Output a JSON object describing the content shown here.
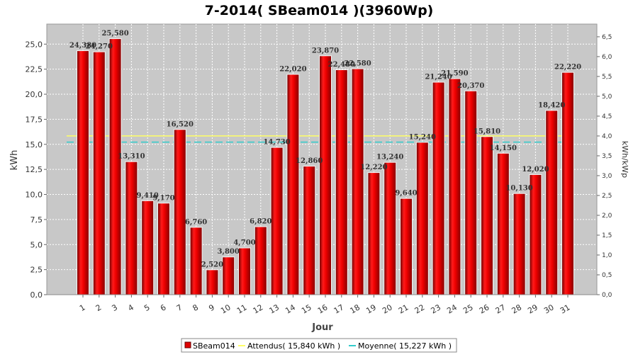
{
  "chart_data": {
    "type": "bar",
    "title": "7-2014( SBeam014 )(3960Wp)",
    "xlabel": "Jour",
    "ylabel": "kWh",
    "y2label": "kWh/kWp",
    "ylim": [
      0,
      27.0
    ],
    "y2lim": [
      0,
      6.82
    ],
    "yticks": [
      "0,0",
      "2,5",
      "5,0",
      "7,5",
      "10,0",
      "12,5",
      "15,0",
      "17,5",
      "20,0",
      "22,5",
      "25,0"
    ],
    "y2ticks": [
      "0,0",
      "0,5",
      "1,0",
      "1,5",
      "2,0",
      "2,5",
      "3,0",
      "3,5",
      "4,0",
      "4,5",
      "5,0",
      "5,5",
      "6,0",
      "6,5"
    ],
    "categories": [
      "1",
      "2",
      "3",
      "4",
      "5",
      "6",
      "7",
      "8",
      "9",
      "10",
      "11",
      "12",
      "13",
      "14",
      "15",
      "16",
      "17",
      "18",
      "19",
      "20",
      "21",
      "22",
      "23",
      "24",
      "25",
      "26",
      "27",
      "28",
      "29",
      "30",
      "31"
    ],
    "series": [
      {
        "name": "SBeam014",
        "color": "#e00000",
        "values": [
          24.38,
          24.27,
          25.58,
          13.31,
          9.41,
          9.17,
          16.52,
          6.76,
          2.52,
          3.8,
          4.7,
          6.82,
          14.73,
          22.02,
          12.86,
          23.87,
          22.48,
          22.58,
          12.22,
          13.24,
          9.64,
          15.24,
          21.24,
          21.59,
          20.37,
          15.81,
          14.15,
          10.13,
          12.02,
          18.42,
          22.22
        ],
        "labels": [
          "24,380",
          "24,270",
          "25,580",
          "13,310",
          "9,410",
          "9,170",
          "16,520",
          "6,760",
          "2,520",
          "3,800",
          "4,700",
          "6,820",
          "14,730",
          "22,020",
          "12,860",
          "23,870",
          "22,480",
          "22,580",
          "12,220",
          "13,240",
          "9,640",
          "15,240",
          "21,240",
          "21,590",
          "20,370",
          "15,810",
          "14,150",
          "10,130",
          "12,020",
          "18,420",
          "22,220"
        ]
      }
    ],
    "reference_lines": [
      {
        "name": "Attendus( 15,840 kWh )",
        "value": 15.84,
        "color": "#ffff66"
      },
      {
        "name": "Moyenne( 15,227 kWh )",
        "value": 15.227,
        "color": "#33cccc"
      }
    ],
    "grid": true,
    "legend_position": "bottom"
  }
}
